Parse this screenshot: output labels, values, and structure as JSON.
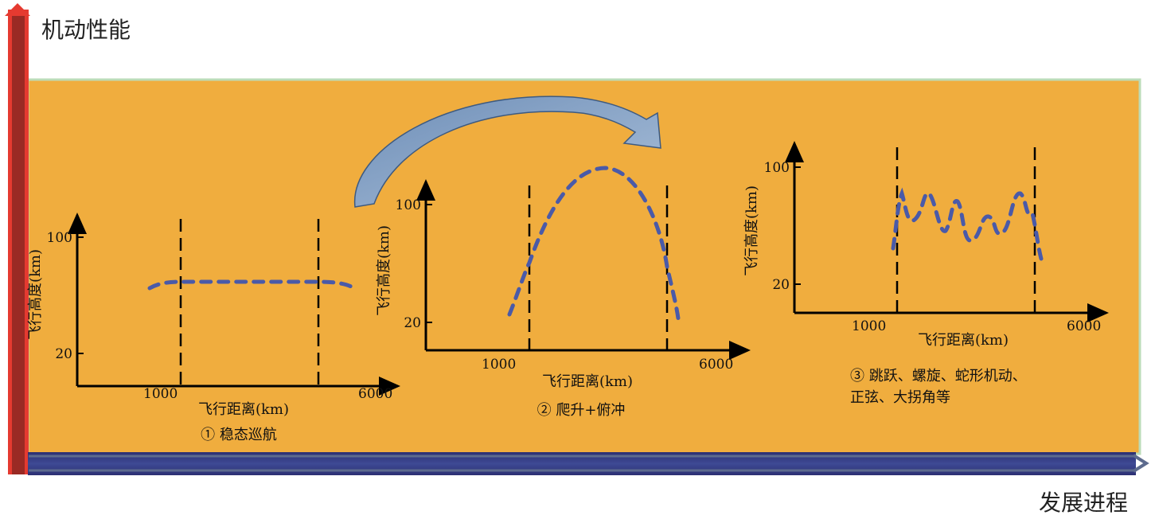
{
  "y_axis_title": "机动性能",
  "x_axis_title": "发展进程",
  "colors": {
    "panel_bg": "#f0ad3e",
    "panel_border": "#bcdcb8",
    "vertical_arrow": "#e53a30",
    "horizontal_arrow": "#33397e",
    "trajectory": "#4a5aa8",
    "transition_arrow": "#8ca7c8"
  },
  "panels": [
    {
      "ylabel": "飞行高度(km)",
      "xlabel": "飞行距离(km)",
      "y_ticks": [
        "100",
        "20"
      ],
      "x_ticks": [
        "1000",
        "6000"
      ],
      "caption": "① 稳态巡航",
      "caption2": ""
    },
    {
      "ylabel": "飞行高度(km)",
      "xlabel": "飞行距离(km)",
      "y_ticks": [
        "100",
        "20"
      ],
      "x_ticks": [
        "1000",
        "6000"
      ],
      "caption": "② 爬升+俯冲",
      "caption2": ""
    },
    {
      "ylabel": "飞行高度(km)",
      "xlabel": "飞行距离(km)",
      "y_ticks": [
        "100",
        "20"
      ],
      "x_ticks": [
        "1000",
        "6000"
      ],
      "caption": "③ 跳跃、螺旋、蛇形机动、",
      "caption2": "正弦、大拐角等"
    }
  ]
}
